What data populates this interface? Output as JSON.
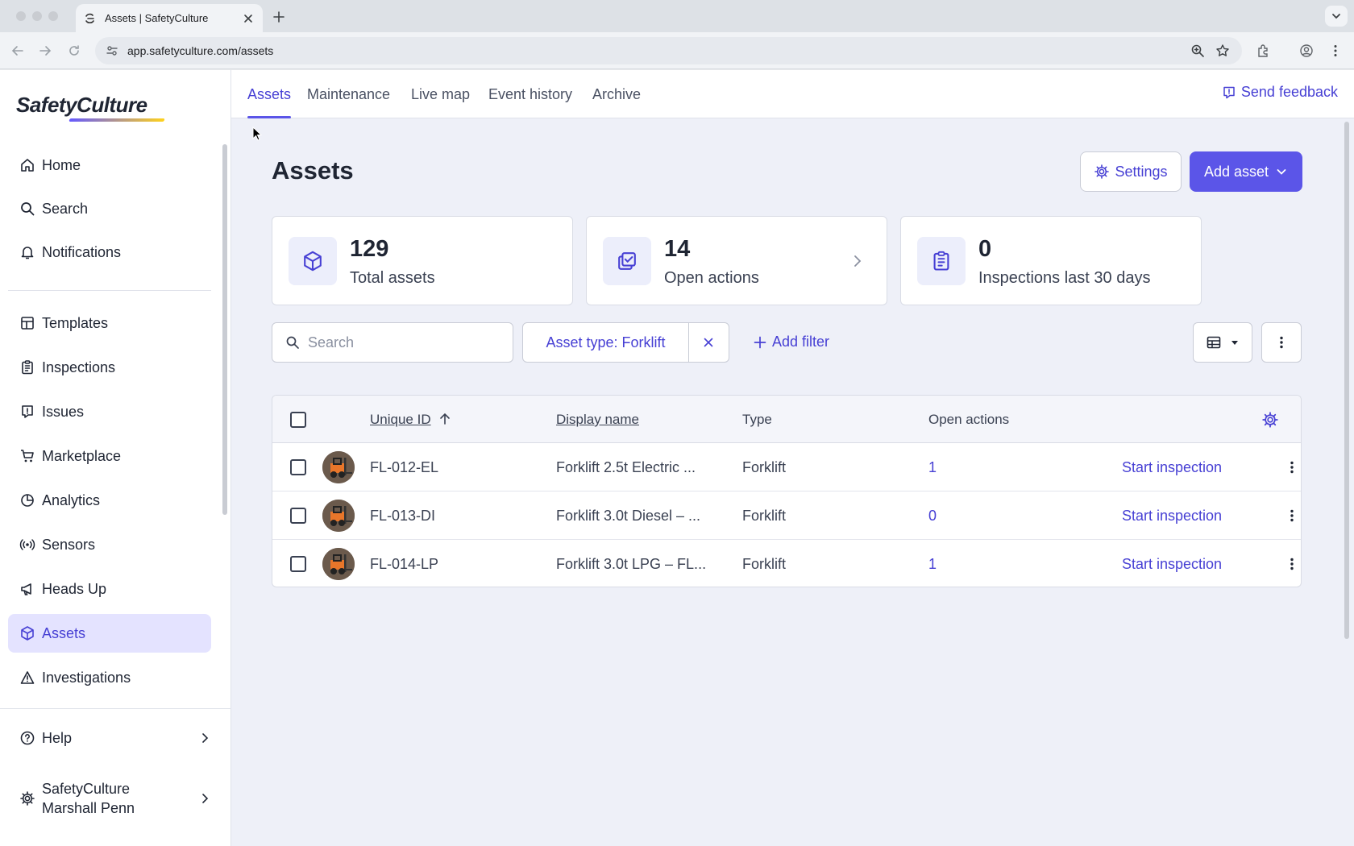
{
  "browser": {
    "tab_title": "Assets | SafetyCulture",
    "url": "app.safetyculture.com/assets"
  },
  "sidebar": {
    "logo": "SafetyCulture",
    "items": [
      {
        "label": "Home",
        "icon": "home-icon"
      },
      {
        "label": "Search",
        "icon": "search-icon"
      },
      {
        "label": "Notifications",
        "icon": "bell-icon"
      },
      {
        "label": "Templates",
        "icon": "templates-icon"
      },
      {
        "label": "Inspections",
        "icon": "clipboard-icon"
      },
      {
        "label": "Issues",
        "icon": "issue-icon"
      },
      {
        "label": "Marketplace",
        "icon": "cart-icon"
      },
      {
        "label": "Analytics",
        "icon": "pie-chart-icon"
      },
      {
        "label": "Sensors",
        "icon": "sensor-icon"
      },
      {
        "label": "Heads Up",
        "icon": "megaphone-icon"
      },
      {
        "label": "Assets",
        "icon": "cube-icon",
        "active": true
      },
      {
        "label": "Investigations",
        "icon": "warning-icon"
      }
    ],
    "help_label": "Help",
    "org_line1": "SafetyCulture",
    "org_line2": "Marshall Penn"
  },
  "topnav": {
    "tabs": [
      "Assets",
      "Maintenance",
      "Live map",
      "Event history",
      "Archive"
    ],
    "active_tab": "Assets",
    "feedback_label": "Send feedback"
  },
  "page": {
    "title": "Assets",
    "settings_label": "Settings",
    "add_asset_label": "Add asset"
  },
  "stats": [
    {
      "value": "129",
      "label": "Total assets",
      "icon": "cube-icon"
    },
    {
      "value": "14",
      "label": "Open actions",
      "icon": "actions-icon"
    },
    {
      "value": "0",
      "label": "Inspections last 30 days",
      "icon": "clipboard-icon"
    }
  ],
  "filters": {
    "search_placeholder": "Search",
    "active_filter": "Asset type: Forklift",
    "add_filter_label": "Add filter"
  },
  "table": {
    "columns": {
      "unique_id": "Unique ID",
      "display_name": "Display name",
      "type": "Type",
      "open_actions": "Open actions"
    },
    "rows": [
      {
        "id": "FL-012-EL",
        "name": "Forklift 2.5t Electric ...",
        "type": "Forklift",
        "open_actions": "1",
        "action": "Start inspection"
      },
      {
        "id": "FL-013-DI",
        "name": "Forklift 3.0t Diesel – ...",
        "type": "Forklift",
        "open_actions": "0",
        "action": "Start inspection"
      },
      {
        "id": "FL-014-LP",
        "name": "Forklift 3.0t LPG – FL...",
        "type": "Forklift",
        "open_actions": "1",
        "action": "Start inspection"
      }
    ]
  },
  "colors": {
    "accent": "#5b55e8",
    "accent_text": "#4740d4",
    "page_bg": "#eef0f8"
  }
}
